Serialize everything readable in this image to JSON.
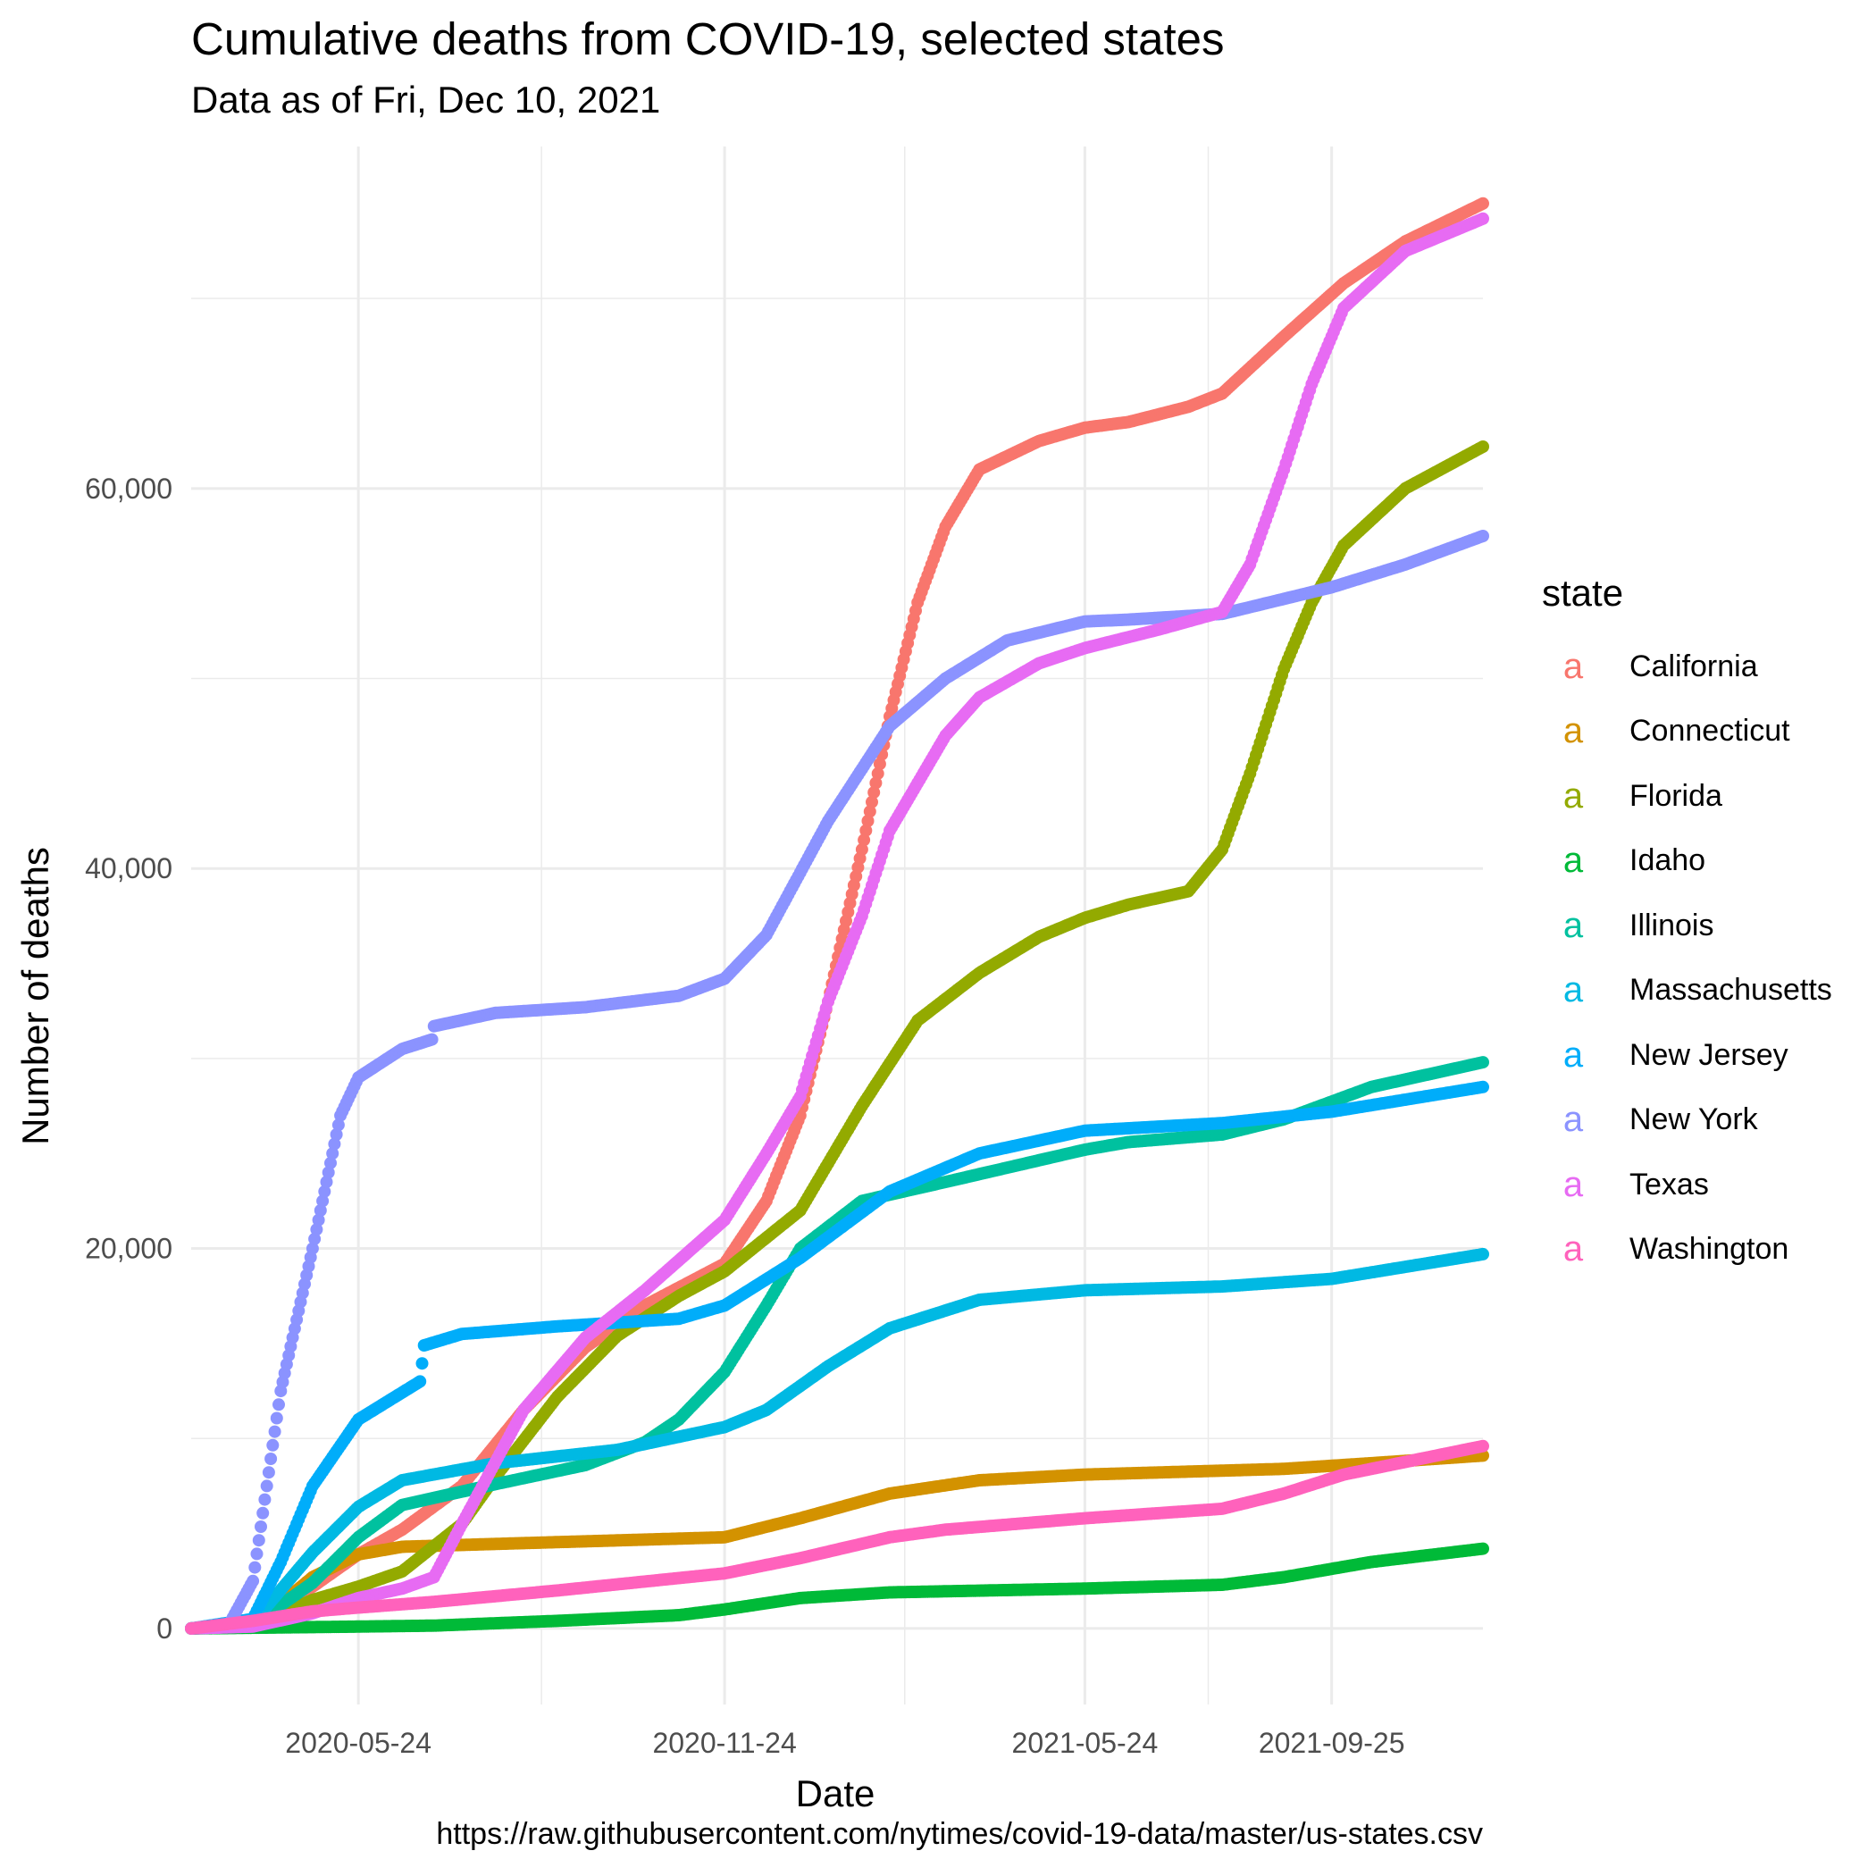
{
  "title": "Cumulative deaths from COVID-19, selected states",
  "subtitle": "Data as of Fri, Dec 10, 2021",
  "caption": "https://raw.githubusercontent.com/nytimes/covid-19-data/master/us-states.csv",
  "legend": {
    "title": "state",
    "key_glyph": "a"
  },
  "chart_data": {
    "type": "scatter",
    "title": "Cumulative deaths from COVID-19, selected states",
    "subtitle": "Data as of Fri, Dec 10, 2021",
    "xlabel": "Date",
    "ylabel": "Number of deaths",
    "x_ticks": [
      "2020-05-24",
      "2020-11-24",
      "2021-05-24",
      "2021-09-25"
    ],
    "y_ticks": [
      0,
      20000,
      40000,
      60000
    ],
    "y_tick_labels": [
      "0",
      "20,000",
      "40,000",
      "60,000"
    ],
    "xlim": [
      "2020-03-01",
      "2021-12-10"
    ],
    "ylim": [
      -4000,
      78000
    ],
    "grid": true,
    "legend_position": "right",
    "series": [
      {
        "name": "California",
        "color": "#F8766D",
        "points": [
          [
            "2020-03-01",
            0
          ],
          [
            "2020-04-01",
            250
          ],
          [
            "2020-05-01",
            2200
          ],
          [
            "2020-05-24",
            3900
          ],
          [
            "2020-06-15",
            5200
          ],
          [
            "2020-07-15",
            7500
          ],
          [
            "2020-08-15",
            11500
          ],
          [
            "2020-09-15",
            14800
          ],
          [
            "2020-10-15",
            17000
          ],
          [
            "2020-11-24",
            19200
          ],
          [
            "2020-12-15",
            22500
          ],
          [
            "2021-01-01",
            27000
          ],
          [
            "2021-01-15",
            33000
          ],
          [
            "2021-02-01",
            41000
          ],
          [
            "2021-02-15",
            48000
          ],
          [
            "2021-03-01",
            54000
          ],
          [
            "2021-03-15",
            58000
          ],
          [
            "2021-04-01",
            61000
          ],
          [
            "2021-05-01",
            62500
          ],
          [
            "2021-05-24",
            63200
          ],
          [
            "2021-06-15",
            63500
          ],
          [
            "2021-07-15",
            64300
          ],
          [
            "2021-08-01",
            65000
          ],
          [
            "2021-09-01",
            68000
          ],
          [
            "2021-10-01",
            70800
          ],
          [
            "2021-11-01",
            73000
          ],
          [
            "2021-12-10",
            75000
          ]
        ]
      },
      {
        "name": "Connecticut",
        "color": "#D39200",
        "points": [
          [
            "2020-03-01",
            0
          ],
          [
            "2020-04-01",
            100
          ],
          [
            "2020-05-01",
            2700
          ],
          [
            "2020-05-24",
            3900
          ],
          [
            "2020-06-15",
            4300
          ],
          [
            "2020-08-01",
            4450
          ],
          [
            "2020-11-24",
            4800
          ],
          [
            "2021-01-01",
            5800
          ],
          [
            "2021-02-15",
            7100
          ],
          [
            "2021-04-01",
            7800
          ],
          [
            "2021-05-24",
            8100
          ],
          [
            "2021-09-01",
            8400
          ],
          [
            "2021-10-15",
            8700
          ],
          [
            "2021-12-10",
            9100
          ]
        ]
      },
      {
        "name": "Florida",
        "color": "#93AA00",
        "points": [
          [
            "2020-03-01",
            0
          ],
          [
            "2020-04-01",
            150
          ],
          [
            "2020-05-01",
            1500
          ],
          [
            "2020-05-24",
            2200
          ],
          [
            "2020-06-15",
            3000
          ],
          [
            "2020-07-15",
            5500
          ],
          [
            "2020-08-01",
            8000
          ],
          [
            "2020-09-01",
            12200
          ],
          [
            "2020-10-01",
            15400
          ],
          [
            "2020-11-01",
            17500
          ],
          [
            "2020-11-24",
            18800
          ],
          [
            "2021-01-01",
            22000
          ],
          [
            "2021-02-01",
            27500
          ],
          [
            "2021-03-01",
            32000
          ],
          [
            "2021-04-01",
            34500
          ],
          [
            "2021-05-01",
            36400
          ],
          [
            "2021-05-24",
            37400
          ],
          [
            "2021-06-15",
            38100
          ],
          [
            "2021-07-15",
            38800
          ],
          [
            "2021-08-01",
            41000
          ],
          [
            "2021-08-15",
            45000
          ],
          [
            "2021-09-01",
            50500
          ],
          [
            "2021-09-15",
            54000
          ],
          [
            "2021-10-01",
            57000
          ],
          [
            "2021-11-01",
            60000
          ],
          [
            "2021-12-10",
            62200
          ]
        ]
      },
      {
        "name": "Idaho",
        "color": "#00BA38",
        "points": [
          [
            "2020-03-01",
            0
          ],
          [
            "2020-05-24",
            100
          ],
          [
            "2020-07-01",
            150
          ],
          [
            "2020-09-01",
            400
          ],
          [
            "2020-11-01",
            700
          ],
          [
            "2020-11-24",
            1000
          ],
          [
            "2021-01-01",
            1600
          ],
          [
            "2021-02-15",
            1900
          ],
          [
            "2021-05-24",
            2100
          ],
          [
            "2021-08-01",
            2300
          ],
          [
            "2021-09-01",
            2700
          ],
          [
            "2021-10-15",
            3500
          ],
          [
            "2021-12-10",
            4200
          ]
        ]
      },
      {
        "name": "Illinois",
        "color": "#00C19F",
        "points": [
          [
            "2020-03-01",
            0
          ],
          [
            "2020-04-01",
            200
          ],
          [
            "2020-05-01",
            2400
          ],
          [
            "2020-05-24",
            4800
          ],
          [
            "2020-06-15",
            6500
          ],
          [
            "2020-08-01",
            7600
          ],
          [
            "2020-09-15",
            8600
          ],
          [
            "2020-10-15",
            9800
          ],
          [
            "2020-11-01",
            11000
          ],
          [
            "2020-11-24",
            13500
          ],
          [
            "2020-12-15",
            17000
          ],
          [
            "2021-01-01",
            20000
          ],
          [
            "2021-02-01",
            22500
          ],
          [
            "2021-03-15",
            23500
          ],
          [
            "2021-05-24",
            25200
          ],
          [
            "2021-06-15",
            25600
          ],
          [
            "2021-08-01",
            26000
          ],
          [
            "2021-09-01",
            26800
          ],
          [
            "2021-10-15",
            28500
          ],
          [
            "2021-12-10",
            29800
          ]
        ]
      },
      {
        "name": "Massachusetts",
        "color": "#00B9E3",
        "points": [
          [
            "2020-03-01",
            0
          ],
          [
            "2020-04-01",
            300
          ],
          [
            "2020-05-01",
            4000
          ],
          [
            "2020-05-24",
            6400
          ],
          [
            "2020-06-15",
            7800
          ],
          [
            "2020-08-01",
            8700
          ],
          [
            "2020-10-01",
            9400
          ],
          [
            "2020-11-24",
            10600
          ],
          [
            "2020-12-15",
            11500
          ],
          [
            "2021-01-15",
            13800
          ],
          [
            "2021-02-15",
            15800
          ],
          [
            "2021-04-01",
            17300
          ],
          [
            "2021-05-24",
            17800
          ],
          [
            "2021-08-01",
            18000
          ],
          [
            "2021-09-25",
            18400
          ],
          [
            "2021-12-10",
            19700
          ]
        ]
      },
      {
        "name": "New Jersey",
        "color": "#00ADFA",
        "points": [
          [
            "2020-03-01",
            0
          ],
          [
            "2020-04-01",
            500
          ],
          [
            "2020-04-15",
            3500
          ],
          [
            "2020-05-01",
            7500
          ],
          [
            "2020-05-24",
            11000
          ],
          [
            "2020-06-24",
            13000
          ],
          [
            "2020-06-26",
            14900
          ],
          [
            "2020-07-15",
            15500
          ],
          [
            "2020-09-01",
            15900
          ],
          [
            "2020-11-01",
            16300
          ],
          [
            "2020-11-24",
            17000
          ],
          [
            "2021-01-01",
            19500
          ],
          [
            "2021-02-15",
            23000
          ],
          [
            "2021-04-01",
            25000
          ],
          [
            "2021-05-24",
            26200
          ],
          [
            "2021-08-01",
            26600
          ],
          [
            "2021-09-25",
            27200
          ],
          [
            "2021-12-10",
            28500
          ]
        ]
      },
      {
        "name": "New York",
        "color": "#8B93FF",
        "points": [
          [
            "2020-03-01",
            0
          ],
          [
            "2020-03-20",
            200
          ],
          [
            "2020-04-01",
            2500
          ],
          [
            "2020-04-15",
            12500
          ],
          [
            "2020-05-01",
            20000
          ],
          [
            "2020-05-15",
            27000
          ],
          [
            "2020-05-24",
            29000
          ],
          [
            "2020-06-15",
            30500
          ],
          [
            "2020-06-30",
            31000
          ],
          [
            "2020-07-01",
            31700
          ],
          [
            "2020-08-01",
            32400
          ],
          [
            "2020-09-15",
            32700
          ],
          [
            "2020-11-01",
            33300
          ],
          [
            "2020-11-24",
            34200
          ],
          [
            "2020-12-15",
            36500
          ],
          [
            "2021-01-15",
            42500
          ],
          [
            "2021-02-15",
            47500
          ],
          [
            "2021-03-15",
            50000
          ],
          [
            "2021-04-15",
            52000
          ],
          [
            "2021-05-24",
            53000
          ],
          [
            "2021-06-15",
            53100
          ],
          [
            "2021-08-01",
            53400
          ],
          [
            "2021-09-25",
            54800
          ],
          [
            "2021-11-01",
            56000
          ],
          [
            "2021-12-10",
            57500
          ]
        ]
      },
      {
        "name": "Texas",
        "color": "#E76BF3",
        "points": [
          [
            "2020-03-01",
            0
          ],
          [
            "2020-04-01",
            100
          ],
          [
            "2020-05-01",
            800
          ],
          [
            "2020-05-24",
            1600
          ],
          [
            "2020-06-15",
            2100
          ],
          [
            "2020-07-01",
            2700
          ],
          [
            "2020-07-15",
            5500
          ],
          [
            "2020-08-15",
            11500
          ],
          [
            "2020-09-15",
            15300
          ],
          [
            "2020-10-15",
            17800
          ],
          [
            "2020-11-24",
            21500
          ],
          [
            "2020-12-15",
            25000
          ],
          [
            "2021-01-01",
            28000
          ],
          [
            "2021-01-15",
            33000
          ],
          [
            "2021-02-01",
            37500
          ],
          [
            "2021-02-15",
            42000
          ],
          [
            "2021-03-15",
            47000
          ],
          [
            "2021-04-01",
            49000
          ],
          [
            "2021-05-01",
            50800
          ],
          [
            "2021-05-24",
            51600
          ],
          [
            "2021-07-01",
            52600
          ],
          [
            "2021-08-01",
            53500
          ],
          [
            "2021-08-15",
            56000
          ],
          [
            "2021-09-01",
            61000
          ],
          [
            "2021-09-15",
            65500
          ],
          [
            "2021-10-01",
            69500
          ],
          [
            "2021-11-01",
            72500
          ],
          [
            "2021-12-10",
            74200
          ]
        ]
      },
      {
        "name": "Washington",
        "color": "#FF62BC",
        "points": [
          [
            "2020-03-01",
            0
          ],
          [
            "2020-04-01",
            400
          ],
          [
            "2020-05-01",
            900
          ],
          [
            "2020-05-24",
            1100
          ],
          [
            "2020-07-01",
            1400
          ],
          [
            "2020-09-01",
            2000
          ],
          [
            "2020-11-24",
            2900
          ],
          [
            "2021-01-01",
            3700
          ],
          [
            "2021-02-15",
            4800
          ],
          [
            "2021-03-15",
            5200
          ],
          [
            "2021-05-24",
            5800
          ],
          [
            "2021-08-01",
            6300
          ],
          [
            "2021-09-01",
            7100
          ],
          [
            "2021-10-01",
            8100
          ],
          [
            "2021-12-10",
            9600
          ]
        ]
      }
    ]
  }
}
